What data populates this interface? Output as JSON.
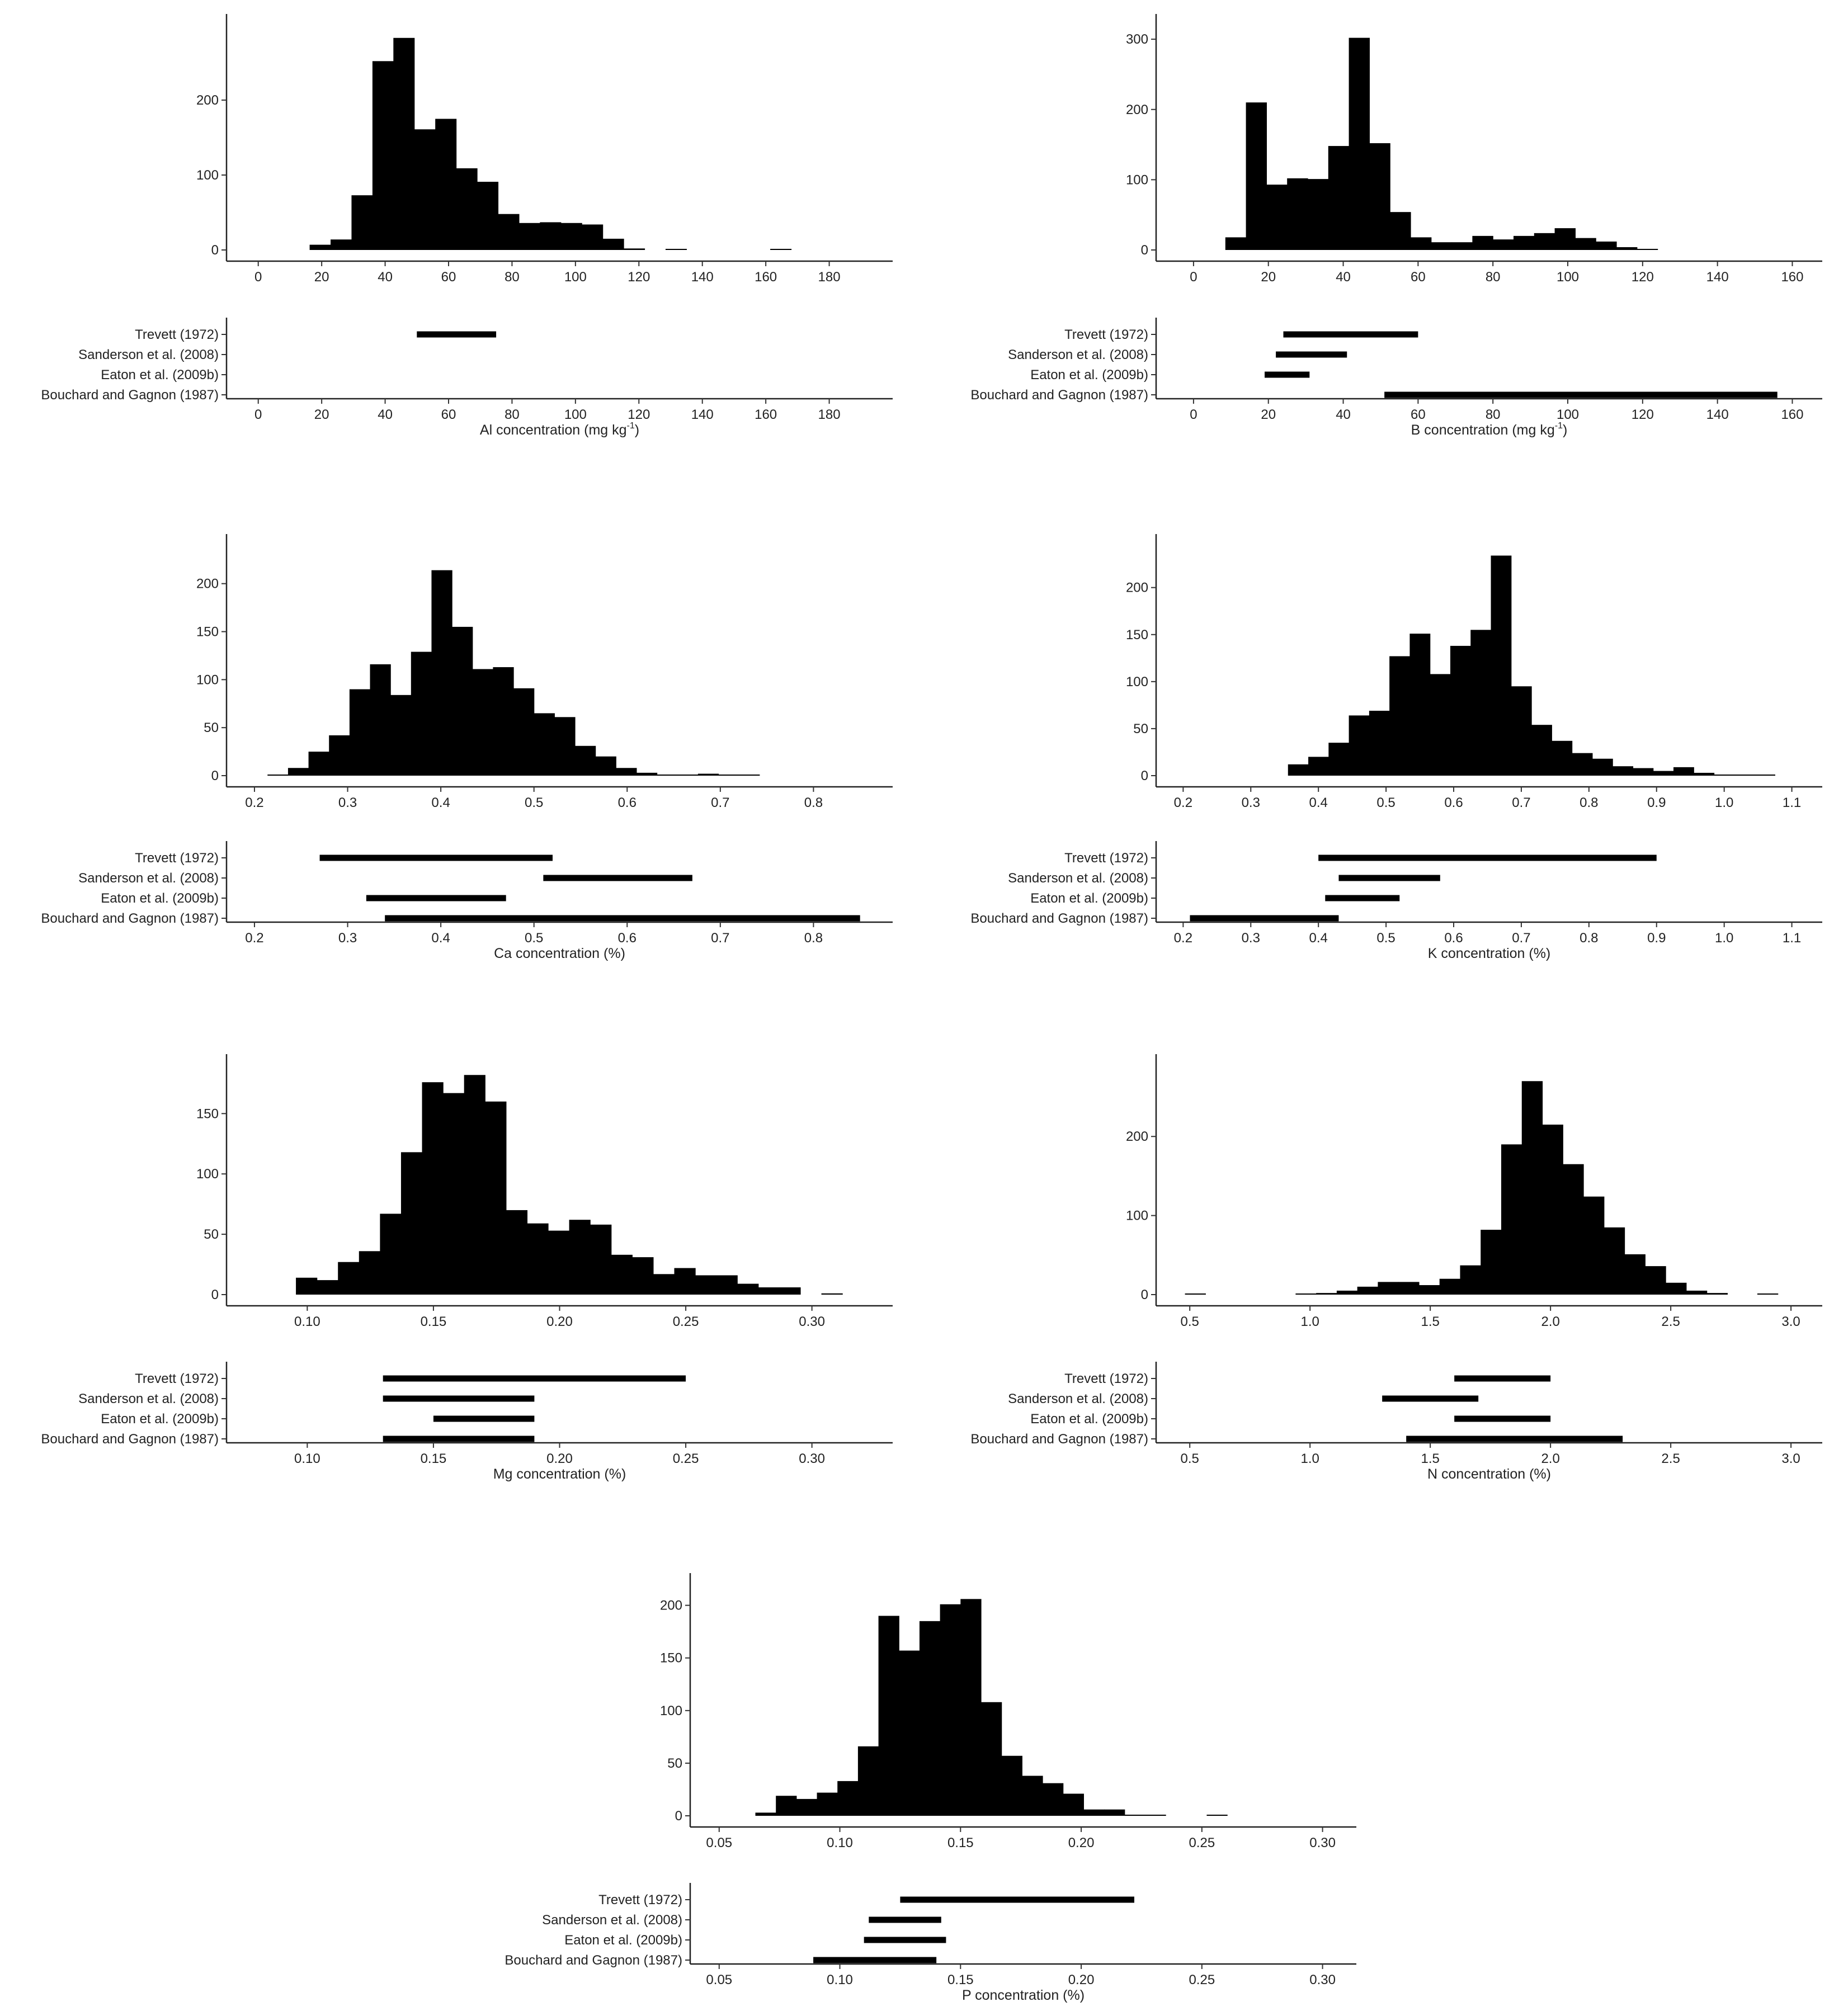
{
  "chart_data": [
    {
      "type": "histogram",
      "element": "Al",
      "xlabel_main": "Al concentration (mg kg",
      "xlabel_sup": "-1",
      "xlabel_end": ")",
      "xlim": [
        -10,
        200
      ],
      "x_ticks": [
        0,
        20,
        40,
        60,
        80,
        100,
        120,
        140,
        160,
        180
      ],
      "x_tick_labels": [
        "0",
        "20",
        "40",
        "60",
        "80",
        "100",
        "120",
        "140",
        "160",
        "180"
      ],
      "ylim": [
        0,
        300
      ],
      "y_ticks": [
        0,
        100,
        200
      ],
      "y_tick_labels": [
        "0",
        "100",
        "200"
      ],
      "bin_width": 6.6,
      "bin_starts": [
        16.2,
        22.8,
        29.4,
        36.0,
        42.6,
        49.2,
        55.8,
        62.4,
        69.0,
        75.6,
        82.2,
        88.8,
        95.4,
        102.0,
        108.6,
        115.2,
        128.4,
        161.4
      ],
      "counts": [
        7,
        14,
        73,
        252,
        283,
        161,
        175,
        109,
        91,
        48,
        36,
        37,
        36,
        34,
        15,
        2,
        1,
        1
      ],
      "ref_ranges": [
        {
          "label": "Trevett (1972)",
          "range": [
            50,
            75
          ]
        },
        {
          "label": "Sanderson et al. (2008)",
          "range": null
        },
        {
          "label": "Eaton et al. (2009b)",
          "range": null
        },
        {
          "label": "Bouchard and Gagnon (1987)",
          "range": null
        }
      ]
    },
    {
      "type": "histogram",
      "element": "B",
      "xlabel_main": "B concentration (mg kg",
      "xlabel_sup": "-1",
      "xlabel_end": ")",
      "xlim": [
        -10,
        168
      ],
      "x_ticks": [
        0,
        20,
        40,
        60,
        80,
        100,
        120,
        140,
        160
      ],
      "x_tick_labels": [
        "0",
        "20",
        "40",
        "60",
        "80",
        "100",
        "120",
        "140",
        "160"
      ],
      "ylim": [
        0,
        320
      ],
      "y_ticks": [
        0,
        100,
        200,
        300
      ],
      "y_tick_labels": [
        "0",
        "100",
        "200",
        "300"
      ],
      "bin_width": 5.5,
      "bin_starts": [
        8.5,
        14.0,
        19.5,
        25.0,
        30.5,
        36.0,
        41.5,
        47.0,
        52.5,
        58.0,
        63.5,
        69.0,
        74.5,
        80.0,
        85.5,
        91.0,
        96.5,
        102.0,
        107.5,
        113.0,
        118.5
      ],
      "counts": [
        18,
        210,
        93,
        102,
        101,
        148,
        302,
        152,
        54,
        18,
        11,
        11,
        20,
        15,
        20,
        24,
        31,
        17,
        12,
        4,
        1
      ],
      "ref_ranges": [
        {
          "label": "Trevett (1972)",
          "range": [
            24,
            60
          ]
        },
        {
          "label": "Sanderson et al. (2008)",
          "range": [
            22,
            41
          ]
        },
        {
          "label": "Eaton et al. (2009b)",
          "range": [
            19,
            31
          ]
        },
        {
          "label": "Bouchard and Gagnon (1987)",
          "range": [
            51,
            156
          ]
        }
      ]
    },
    {
      "type": "histogram",
      "element": "Ca",
      "xlabel_main": "Ca concentration (%)",
      "xlabel_sup": "",
      "xlabel_end": "",
      "xlim": [
        0.17,
        0.885
      ],
      "x_ticks": [
        0.2,
        0.3,
        0.4,
        0.5,
        0.6,
        0.7,
        0.8
      ],
      "x_tick_labels": [
        "0.2",
        "0.3",
        "0.4",
        "0.5",
        "0.6",
        "0.7",
        "0.8"
      ],
      "ylim": [
        0,
        240
      ],
      "y_ticks": [
        0,
        50,
        100,
        150,
        200
      ],
      "y_tick_labels": [
        "0",
        "50",
        "100",
        "150",
        "200"
      ],
      "bin_width": 0.022,
      "bin_starts": [
        0.214,
        0.236,
        0.258,
        0.28,
        0.302,
        0.324,
        0.346,
        0.368,
        0.39,
        0.412,
        0.434,
        0.456,
        0.478,
        0.5,
        0.522,
        0.544,
        0.566,
        0.588,
        0.61,
        0.632,
        0.654,
        0.676,
        0.698,
        0.72
      ],
      "counts": [
        1,
        8,
        25,
        42,
        90,
        116,
        84,
        129,
        214,
        155,
        111,
        113,
        91,
        65,
        61,
        31,
        20,
        8,
        3,
        1,
        1,
        2,
        1,
        1
      ],
      "ref_ranges": [
        {
          "label": "Trevett (1972)",
          "range": [
            0.27,
            0.52
          ]
        },
        {
          "label": "Sanderson et al. (2008)",
          "range": [
            0.51,
            0.67
          ]
        },
        {
          "label": "Eaton et al. (2009b)",
          "range": [
            0.32,
            0.47
          ]
        },
        {
          "label": "Bouchard and Gagnon (1987)",
          "range": [
            0.34,
            0.85
          ]
        }
      ]
    },
    {
      "type": "histogram",
      "element": "K",
      "xlabel_main": "K concentration (%)",
      "xlabel_sup": "",
      "xlabel_end": "",
      "xlim": [
        0.16,
        1.145
      ],
      "x_ticks": [
        0.2,
        0.3,
        0.4,
        0.5,
        0.6,
        0.7,
        0.8,
        0.9,
        1.0,
        1.1
      ],
      "x_tick_labels": [
        "0.2",
        "0.3",
        "0.4",
        "0.5",
        "0.6",
        "0.7",
        "0.8",
        "0.9",
        "1.0",
        "1.1"
      ],
      "ylim": [
        0,
        245
      ],
      "y_ticks": [
        0,
        50,
        100,
        150,
        200
      ],
      "y_tick_labels": [
        "0",
        "50",
        "100",
        "150",
        "200"
      ],
      "bin_width": 0.03,
      "bin_starts": [
        0.355,
        0.385,
        0.415,
        0.445,
        0.475,
        0.505,
        0.535,
        0.565,
        0.595,
        0.625,
        0.655,
        0.685,
        0.715,
        0.745,
        0.775,
        0.805,
        0.835,
        0.865,
        0.895,
        0.925,
        0.955,
        0.985,
        1.015,
        1.045
      ],
      "counts": [
        12,
        20,
        35,
        64,
        69,
        127,
        151,
        108,
        138,
        155,
        234,
        95,
        54,
        37,
        24,
        18,
        10,
        8,
        5,
        9,
        3,
        1,
        1,
        1
      ],
      "ref_ranges": [
        {
          "label": "Trevett (1972)",
          "range": [
            0.4,
            0.9
          ]
        },
        {
          "label": "Sanderson et al. (2008)",
          "range": [
            0.43,
            0.58
          ]
        },
        {
          "label": "Eaton et al. (2009b)",
          "range": [
            0.41,
            0.52
          ]
        },
        {
          "label": "Bouchard and Gagnon (1987)",
          "range": [
            0.21,
            0.43
          ]
        }
      ]
    },
    {
      "type": "histogram",
      "element": "Mg",
      "xlabel_main": "Mg concentration (%)",
      "xlabel_sup": "",
      "xlabel_end": "",
      "xlim": [
        0.068,
        0.332
      ],
      "x_ticks": [
        0.1,
        0.15,
        0.2,
        0.25,
        0.3
      ],
      "x_tick_labels": [
        "0.10",
        "0.15",
        "0.20",
        "0.25",
        "0.30"
      ],
      "ylim": [
        0,
        190
      ],
      "y_ticks": [
        0,
        50,
        100,
        150
      ],
      "y_tick_labels": [
        "0",
        "50",
        "100",
        "150"
      ],
      "bin_width": 0.00833,
      "bin_starts": [
        0.0955,
        0.10383,
        0.11216,
        0.12049,
        0.12882,
        0.13715,
        0.14548,
        0.15381,
        0.16214,
        0.17047,
        0.1788,
        0.18713,
        0.19546,
        0.20379,
        0.21212,
        0.22045,
        0.22878,
        0.23711,
        0.24544,
        0.25377,
        0.2621,
        0.27043,
        0.27876,
        0.28709,
        0.30375
      ],
      "counts": [
        14,
        12,
        27,
        36,
        67,
        118,
        176,
        167,
        182,
        160,
        70,
        59,
        53,
        62,
        58,
        33,
        31,
        17,
        22,
        16,
        16,
        9,
        6,
        6,
        1
      ],
      "ref_ranges": [
        {
          "label": "Trevett (1972)",
          "range": [
            0.13,
            0.25
          ]
        },
        {
          "label": "Sanderson et al. (2008)",
          "range": [
            0.13,
            0.19
          ]
        },
        {
          "label": "Eaton et al. (2009b)",
          "range": [
            0.15,
            0.19
          ]
        },
        {
          "label": "Bouchard and Gagnon (1987)",
          "range": [
            0.13,
            0.19
          ]
        }
      ]
    },
    {
      "type": "histogram",
      "element": "N",
      "xlabel_main": "N concentration (%)",
      "xlabel_sup": "",
      "xlabel_end": "",
      "xlim": [
        0.36,
        3.13
      ],
      "x_ticks": [
        0.5,
        1.0,
        1.5,
        2.0,
        2.5,
        3.0
      ],
      "x_tick_labels": [
        "0.5",
        "1.0",
        "1.5",
        "2.0",
        "2.5",
        "3.0"
      ],
      "ylim": [
        0,
        290
      ],
      "y_ticks": [
        0,
        100,
        200
      ],
      "y_tick_labels": [
        "0",
        "100",
        "200"
      ],
      "bin_width": 0.0855,
      "bin_starts": [
        0.48,
        0.94,
        1.0255,
        1.111,
        1.1965,
        1.282,
        1.3675,
        1.453,
        1.5385,
        1.624,
        1.7095,
        1.795,
        1.8805,
        1.966,
        2.0515,
        2.137,
        2.2225,
        2.308,
        2.3935,
        2.479,
        2.5645,
        2.65,
        2.86
      ],
      "counts": [
        1,
        1,
        2,
        5,
        10,
        16,
        16,
        12,
        20,
        37,
        82,
        190,
        270,
        215,
        165,
        124,
        85,
        51,
        36,
        15,
        5,
        2,
        1
      ],
      "ref_ranges": [
        {
          "label": "Trevett (1972)",
          "range": [
            1.6,
            2.0
          ]
        },
        {
          "label": "Sanderson et al. (2008)",
          "range": [
            1.3,
            1.7
          ]
        },
        {
          "label": "Eaton et al. (2009b)",
          "range": [
            1.6,
            2.0
          ]
        },
        {
          "label": "Bouchard and Gagnon (1987)",
          "range": [
            1.4,
            2.3
          ]
        }
      ]
    },
    {
      "type": "histogram",
      "element": "P",
      "xlabel_main": "P concentration (%)",
      "xlabel_sup": "",
      "xlabel_end": "",
      "xlim": [
        0.038,
        0.314
      ],
      "x_ticks": [
        0.05,
        0.1,
        0.15,
        0.2,
        0.25,
        0.3
      ],
      "x_tick_labels": [
        "0.05",
        "0.10",
        "0.15",
        "0.20",
        "0.25",
        "0.30"
      ],
      "ylim": [
        0,
        220
      ],
      "y_ticks": [
        0,
        50,
        100,
        150,
        200
      ],
      "y_tick_labels": [
        "0",
        "50",
        "100",
        "150",
        "200"
      ],
      "bin_width": 0.0085,
      "bin_starts": [
        0.065,
        0.0735,
        0.082,
        0.0905,
        0.099,
        0.1075,
        0.116,
        0.1245,
        0.133,
        0.1415,
        0.15,
        0.1585,
        0.167,
        0.1755,
        0.184,
        0.1925,
        0.201,
        0.2095,
        0.218,
        0.2265,
        0.252
      ],
      "counts": [
        3,
        19,
        16,
        22,
        33,
        66,
        190,
        157,
        185,
        201,
        206,
        108,
        57,
        38,
        31,
        21,
        6,
        6,
        1,
        1,
        1
      ],
      "ref_ranges": [
        {
          "label": "Trevett (1972)",
          "range": [
            0.125,
            0.222
          ]
        },
        {
          "label": "Sanderson et al. (2008)",
          "range": [
            0.112,
            0.142
          ]
        },
        {
          "label": "Eaton et al. (2009b)",
          "range": [
            0.11,
            0.144
          ]
        },
        {
          "label": "Bouchard and Gagnon (1987)",
          "range": [
            0.089,
            0.14
          ]
        }
      ]
    }
  ]
}
